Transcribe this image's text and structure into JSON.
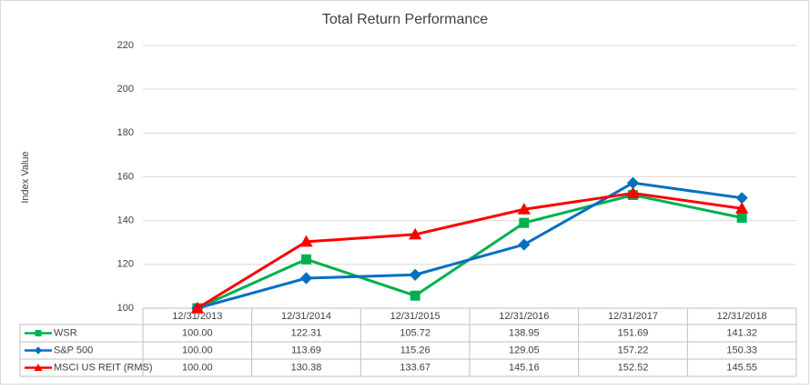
{
  "chart_data": {
    "type": "line",
    "title": "Total Return Performance",
    "y_label": "Index Value",
    "categories": [
      "12/31/2013",
      "12/31/2014",
      "12/31/2015",
      "12/31/2016",
      "12/31/2017",
      "12/31/2018"
    ],
    "series": [
      {
        "name": "WSR",
        "color": "#00b050",
        "marker": "square",
        "values": [
          100,
          122.31,
          105.72,
          138.95,
          151.69,
          141.32
        ],
        "value_labels": [
          "100.00",
          "122.31",
          "105.72",
          "138.95",
          "151.69",
          "141.32"
        ]
      },
      {
        "name": "S&P 500",
        "color": "#0070c0",
        "marker": "diamond",
        "values": [
          100,
          113.69,
          115.26,
          129.05,
          157.22,
          150.33
        ],
        "value_labels": [
          "100.00",
          "113.69",
          "115.26",
          "129.05",
          "157.22",
          "150.33"
        ]
      },
      {
        "name": "MSCI US REIT (RMS)",
        "color": "#ff0000",
        "marker": "triangle",
        "values": [
          100,
          130.38,
          133.67,
          145.16,
          152.52,
          145.55
        ],
        "value_labels": [
          "100.00",
          "130.38",
          "133.67",
          "145.16",
          "152.52",
          "145.55"
        ]
      }
    ],
    "ylim": [
      100,
      220
    ],
    "yticks": [
      100,
      120,
      140,
      160,
      180,
      200,
      220
    ],
    "grid": true,
    "data_table": true
  }
}
